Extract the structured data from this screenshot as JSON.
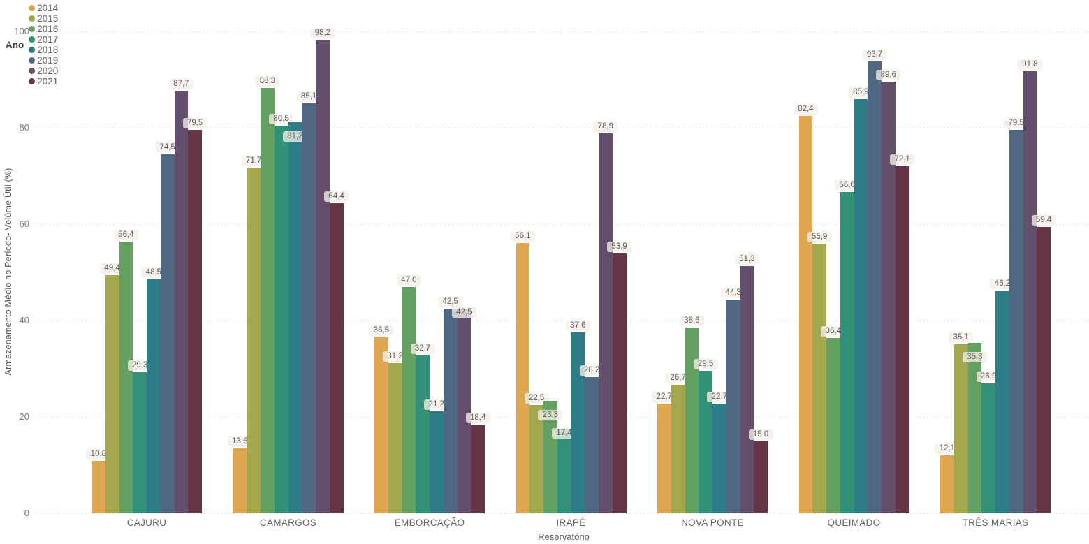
{
  "legend": {
    "title": "Ano"
  },
  "axes": {
    "y_title": "Armazenamento Médio no Período- Volúme Útil (%)",
    "x_title": "Reservatório",
    "y_ticks": [
      100,
      80,
      60,
      40,
      20,
      0
    ]
  },
  "chart_data": {
    "type": "bar",
    "title": "",
    "xlabel": "Reservatório",
    "ylabel": "Armazenamento Médio no Período- Volúme Útil (%)",
    "ylim": [
      0,
      100
    ],
    "grid": "horizontal-dotted",
    "legend_position": "top-left",
    "legend_title": "Ano",
    "value_label_format": "decimal-comma-1dp",
    "categories": [
      "CAJURU",
      "CAMARGOS",
      "EMBORCAÇÃO",
      "IRAPÉ",
      "NOVA PONTE",
      "QUEIMADO",
      "TRÊS MARIAS"
    ],
    "series": [
      {
        "name": "2014",
        "color": "#DFA751",
        "values": [
          10.8,
          13.5,
          36.5,
          56.1,
          22.7,
          82.4,
          12.1
        ]
      },
      {
        "name": "2015",
        "color": "#A5A74E",
        "values": [
          49.4,
          71.7,
          31.2,
          22.5,
          26.7,
          55.9,
          35.1
        ]
      },
      {
        "name": "2016",
        "color": "#64A061",
        "values": [
          56.4,
          88.3,
          47.0,
          23.3,
          38.6,
          36.4,
          35.3
        ]
      },
      {
        "name": "2017",
        "color": "#33917A",
        "values": [
          29.3,
          80.5,
          32.7,
          17.4,
          29.5,
          66.6,
          26.9
        ]
      },
      {
        "name": "2018",
        "color": "#2E7C88",
        "values": [
          48.5,
          81.2,
          21.2,
          37.6,
          22.7,
          85.9,
          46.2
        ]
      },
      {
        "name": "2019",
        "color": "#4F6781",
        "values": [
          74.5,
          85.1,
          42.5,
          28.2,
          44.3,
          93.7,
          79.5
        ]
      },
      {
        "name": "2020",
        "color": "#634F6B",
        "values": [
          87.7,
          98.2,
          42.5,
          78.9,
          51.3,
          89.6,
          91.8
        ]
      },
      {
        "name": "2021",
        "color": "#653447",
        "values": [
          79.5,
          64.4,
          18.4,
          53.9,
          15.0,
          72.1,
          59.4
        ]
      }
    ]
  }
}
